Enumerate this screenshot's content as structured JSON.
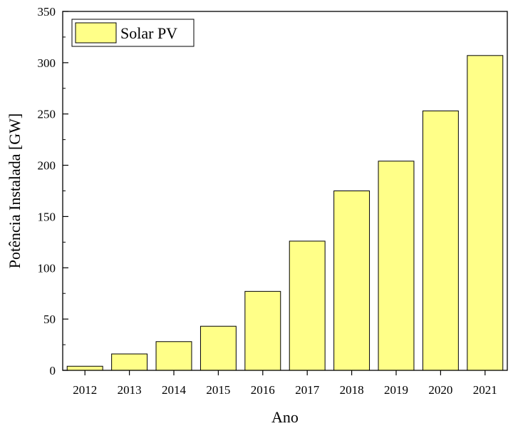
{
  "chart_data": {
    "type": "bar",
    "categories": [
      "2012",
      "2013",
      "2014",
      "2015",
      "2016",
      "2017",
      "2018",
      "2019",
      "2020",
      "2021"
    ],
    "series": [
      {
        "name": "Solar PV",
        "values": [
          4,
          16,
          28,
          43,
          77,
          126,
          175,
          204,
          253,
          307
        ]
      }
    ],
    "xlabel": "Ano",
    "ylabel": "Potência Instalada [GW]",
    "ylim": [
      0,
      350
    ],
    "yticks": [
      0,
      50,
      100,
      150,
      200,
      250,
      300,
      350
    ],
    "grid": false,
    "legend_position": "top-left",
    "bar_color": "#ffff88"
  }
}
